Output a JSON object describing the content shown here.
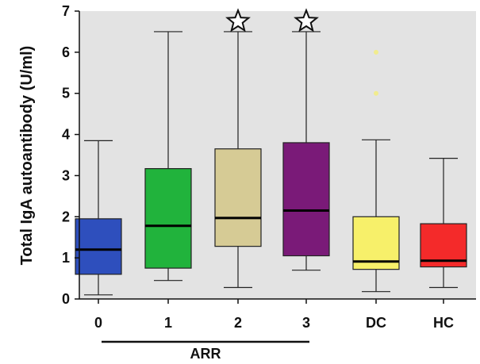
{
  "chart_data": {
    "type": "box",
    "ylabel": "Total IgA autoantibody (U/ml)",
    "ylim": [
      0,
      7
    ],
    "yticks": [
      "0",
      "1",
      "2",
      "3",
      "4",
      "5",
      "6",
      "7"
    ],
    "categories": [
      "0",
      "1",
      "2",
      "3",
      "DC",
      "HC"
    ],
    "group_label": "ARR",
    "group_span": [
      "0",
      "3"
    ],
    "plot_background": "#e3e3e3",
    "boxes": [
      {
        "category": "0",
        "min": 0.1,
        "q1": 0.6,
        "median": 1.2,
        "q3": 1.95,
        "max": 3.85,
        "color": "#2e4fbd",
        "outliers": [],
        "extremes": []
      },
      {
        "category": "1",
        "min": 0.45,
        "q1": 0.75,
        "median": 1.78,
        "q3": 3.17,
        "max": 6.5,
        "color": "#21b33c",
        "outliers": [],
        "extremes": []
      },
      {
        "category": "2",
        "min": 0.28,
        "q1": 1.28,
        "median": 1.97,
        "q3": 3.65,
        "max": 6.5,
        "color": "#d6cb95",
        "outliers": [],
        "extremes": [
          6.75
        ]
      },
      {
        "category": "3",
        "min": 0.7,
        "q1": 1.05,
        "median": 2.15,
        "q3": 3.8,
        "max": 6.5,
        "color": "#7a1a78",
        "outliers": [],
        "extremes": [
          6.75
        ]
      },
      {
        "category": "DC",
        "min": 0.18,
        "q1": 0.72,
        "median": 0.91,
        "q3": 2.0,
        "max": 3.87,
        "color": "#f7f06a",
        "outliers": [
          6.0,
          5.0
        ],
        "extremes": []
      },
      {
        "category": "HC",
        "min": 0.28,
        "q1": 0.78,
        "median": 0.93,
        "q3": 1.83,
        "max": 3.42,
        "color": "#f42a2a",
        "outliers": [],
        "extremes": []
      }
    ]
  }
}
